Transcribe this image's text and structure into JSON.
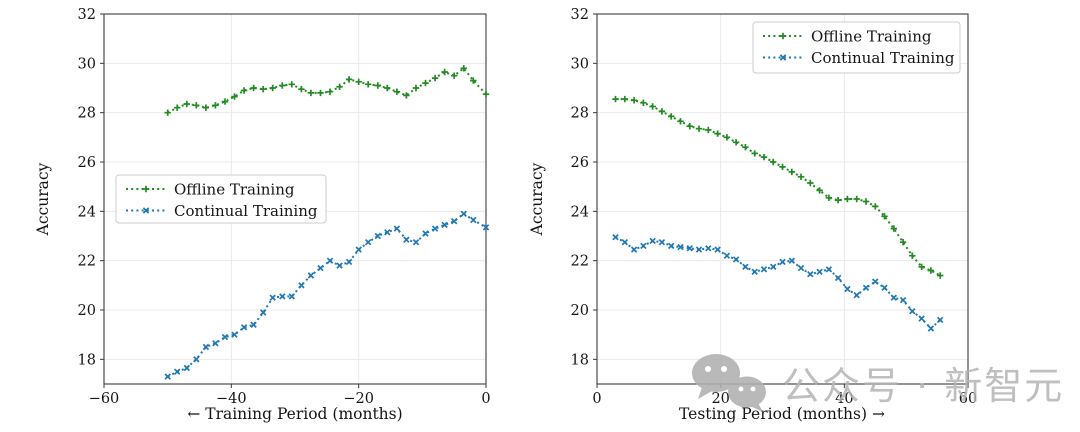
{
  "page": {
    "background": "#ffffff"
  },
  "colors": {
    "offline": "#228B22",
    "continual": "#1F77B4",
    "grid": "#e9e9e9",
    "spine": "#3c3c3c",
    "watermark": "#b4b4b4"
  },
  "watermark": {
    "icon": "wechat-icon",
    "text": "公众号 · 新智元"
  },
  "chart_data": [
    {
      "type": "scatter",
      "title": "",
      "xlabel": "← Training Period (months)",
      "ylabel": "Accuracy",
      "xlim": [
        -60,
        0
      ],
      "ylim": [
        17,
        32
      ],
      "xticks": [
        -60,
        -40,
        -20,
        0
      ],
      "yticks": [
        18,
        20,
        22,
        24,
        26,
        28,
        30,
        32
      ],
      "grid": true,
      "legend_position": "center-left",
      "series": [
        {
          "name": "Offline Training",
          "key": "offline",
          "marker": "plus",
          "color": "#228B22",
          "linestyle": "dotted",
          "x": [
            -50,
            -48.5,
            -47,
            -45.5,
            -44,
            -42.5,
            -41,
            -39.5,
            -38,
            -36.5,
            -35,
            -33.5,
            -32,
            -30.5,
            -29,
            -27.5,
            -26,
            -24.5,
            -23,
            -21.5,
            -20,
            -18.5,
            -17,
            -15.5,
            -14,
            -12.5,
            -11,
            -9.5,
            -8,
            -6.5,
            -5,
            -3.5,
            -2,
            0
          ],
          "y": [
            28.0,
            28.2,
            28.35,
            28.3,
            28.2,
            28.3,
            28.45,
            28.65,
            28.9,
            29.0,
            28.95,
            29.0,
            29.1,
            29.15,
            28.95,
            28.8,
            28.8,
            28.85,
            29.05,
            29.35,
            29.25,
            29.15,
            29.1,
            29.0,
            28.85,
            28.7,
            29.0,
            29.2,
            29.4,
            29.65,
            29.5,
            29.8,
            29.3,
            28.75
          ]
        },
        {
          "name": "Continual Training",
          "key": "continual",
          "marker": "x",
          "color": "#1F77B4",
          "linestyle": "dotted",
          "x": [
            -50,
            -48.5,
            -47,
            -45.5,
            -44,
            -42.5,
            -41,
            -39.5,
            -38,
            -36.5,
            -35,
            -33.5,
            -32,
            -30.5,
            -29,
            -27.5,
            -26,
            -24.5,
            -23,
            -21.5,
            -20,
            -18.5,
            -17,
            -15.5,
            -14,
            -12.5,
            -11,
            -9.5,
            -8,
            -6.5,
            -5,
            -3.5,
            -2,
            0
          ],
          "y": [
            17.3,
            17.5,
            17.65,
            18.0,
            18.5,
            18.65,
            18.9,
            19.0,
            19.3,
            19.4,
            19.9,
            20.5,
            20.55,
            20.55,
            21.0,
            21.4,
            21.7,
            22.0,
            21.8,
            21.95,
            22.45,
            22.75,
            23.0,
            23.15,
            23.3,
            22.85,
            22.75,
            23.1,
            23.3,
            23.45,
            23.6,
            23.9,
            23.65,
            23.35
          ]
        }
      ]
    },
    {
      "type": "scatter",
      "title": "",
      "xlabel": "Testing Period (months) →",
      "ylabel": "Accuracy",
      "xlim": [
        0,
        60
      ],
      "ylim": [
        17,
        32
      ],
      "xticks": [
        0,
        20,
        40,
        60
      ],
      "yticks": [
        18,
        20,
        22,
        24,
        26,
        28,
        30,
        32
      ],
      "grid": true,
      "legend_position": "top-right",
      "series": [
        {
          "name": "Offline Training",
          "key": "offline",
          "marker": "plus",
          "color": "#228B22",
          "linestyle": "dotted",
          "x": [
            3,
            4.5,
            6,
            7.5,
            9,
            10.5,
            12,
            13.5,
            15,
            16.5,
            18,
            19.5,
            21,
            22.5,
            24,
            25.5,
            27,
            28.5,
            30,
            31.5,
            33,
            34.5,
            36,
            37.5,
            39,
            40.5,
            42,
            43.5,
            45,
            46.5,
            48,
            49.5,
            51,
            52.5,
            54,
            55.5
          ],
          "y": [
            28.55,
            28.55,
            28.5,
            28.4,
            28.25,
            28.05,
            27.85,
            27.65,
            27.45,
            27.35,
            27.3,
            27.15,
            27.0,
            26.8,
            26.6,
            26.35,
            26.2,
            26.0,
            25.8,
            25.6,
            25.4,
            25.15,
            24.85,
            24.55,
            24.45,
            24.5,
            24.5,
            24.4,
            24.2,
            23.8,
            23.3,
            22.75,
            22.2,
            21.75,
            21.6,
            21.4
          ]
        },
        {
          "name": "Continual Training",
          "key": "continual",
          "marker": "x",
          "color": "#1F77B4",
          "linestyle": "dotted",
          "x": [
            3,
            4.5,
            6,
            7.5,
            9,
            10.5,
            12,
            13.5,
            15,
            16.5,
            18,
            19.5,
            21,
            22.5,
            24,
            25.5,
            27,
            28.5,
            30,
            31.5,
            33,
            34.5,
            36,
            37.5,
            39,
            40.5,
            42,
            43.5,
            45,
            46.5,
            48,
            49.5,
            51,
            52.5,
            54,
            55.5
          ],
          "y": [
            22.95,
            22.75,
            22.45,
            22.6,
            22.8,
            22.75,
            22.6,
            22.55,
            22.5,
            22.45,
            22.5,
            22.45,
            22.2,
            22.05,
            21.75,
            21.55,
            21.65,
            21.75,
            21.95,
            22.0,
            21.7,
            21.45,
            21.55,
            21.65,
            21.3,
            20.85,
            20.6,
            20.9,
            21.15,
            20.9,
            20.5,
            20.4,
            19.95,
            19.65,
            19.25,
            19.6
          ]
        }
      ]
    }
  ]
}
